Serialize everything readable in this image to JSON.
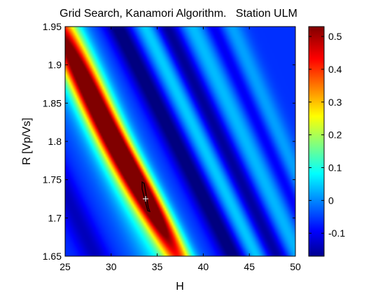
{
  "chart_data": [
    {
      "type": "heatmap",
      "title": "Grid Search, Kanamori Algorithm.   Station ULM",
      "xlabel": "H",
      "ylabel": "R [Vp/Vs]",
      "xlim": [
        25,
        50
      ],
      "ylim": [
        1.65,
        1.95
      ],
      "x_ticks": [
        "25",
        "30",
        "35",
        "40",
        "45",
        "50"
      ],
      "y_ticks": [
        "1.65",
        "1.7",
        "1.75",
        "1.8",
        "1.85",
        "1.9",
        "1.95"
      ],
      "colorbar": {
        "range": [
          -0.17,
          0.53
        ],
        "ticks": [
          "-0.1",
          "0",
          "0.1",
          "0.2",
          "0.3",
          "0.4",
          "0.5"
        ],
        "colormap": "jet"
      },
      "features": {
        "main_ridge_max": {
          "H": 33.8,
          "R": 1.727,
          "value": 0.53
        },
        "upper_ridge": {
          "H": 27.5,
          "R": 1.87,
          "value": 0.33
        },
        "best_fit_marker": {
          "H": 33.8,
          "R": 1.727
        }
      },
      "grid": false
    }
  ]
}
